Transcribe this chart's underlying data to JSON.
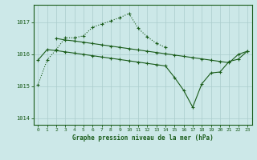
{
  "title": "Graphe pression niveau de la mer (hPa)",
  "bg_color": "#cce8e8",
  "grid_color": "#aacccc",
  "line_color": "#1a5c1a",
  "xlim": [
    -0.5,
    23.5
  ],
  "ylim": [
    1013.8,
    1017.55
  ],
  "yticks": [
    1014,
    1015,
    1016,
    1017
  ],
  "xticks": [
    0,
    1,
    2,
    3,
    4,
    5,
    6,
    7,
    8,
    9,
    10,
    11,
    12,
    13,
    14,
    15,
    16,
    17,
    18,
    19,
    20,
    21,
    22,
    23
  ],
  "series1": {
    "x": [
      0,
      1,
      2,
      3,
      4,
      5,
      6,
      7,
      8,
      9,
      10,
      11,
      12,
      13,
      14
    ],
    "y": [
      1015.05,
      1015.82,
      1016.15,
      1016.52,
      1016.52,
      1016.58,
      1016.85,
      1016.95,
      1017.05,
      1017.15,
      1017.28,
      1016.82,
      1016.55,
      1016.35,
      1016.22
    ]
  },
  "series2": {
    "x": [
      2,
      3,
      4,
      5,
      6,
      7,
      8,
      9,
      10,
      11,
      12,
      13,
      14,
      15,
      16,
      17,
      18,
      19,
      20,
      21,
      22,
      23
    ],
    "y": [
      1016.5,
      1016.45,
      1016.42,
      1016.38,
      1016.34,
      1016.3,
      1016.26,
      1016.22,
      1016.18,
      1016.14,
      1016.1,
      1016.06,
      1016.02,
      1015.98,
      1015.94,
      1015.9,
      1015.86,
      1015.82,
      1015.78,
      1015.74,
      1016.0,
      1016.1
    ]
  },
  "series3": {
    "x": [
      0,
      1,
      2,
      3,
      4,
      5,
      6,
      7,
      8,
      9,
      10,
      11,
      12,
      13,
      14,
      15,
      16,
      17,
      18,
      19,
      20,
      21,
      22,
      23
    ],
    "y": [
      1015.82,
      1016.15,
      1016.12,
      1016.08,
      1016.04,
      1016.0,
      1015.96,
      1015.92,
      1015.88,
      1015.84,
      1015.8,
      1015.76,
      1015.72,
      1015.68,
      1015.64,
      1015.28,
      1014.88,
      1014.35,
      1015.08,
      1015.42,
      1015.45,
      1015.78,
      1015.85,
      1016.1
    ]
  }
}
